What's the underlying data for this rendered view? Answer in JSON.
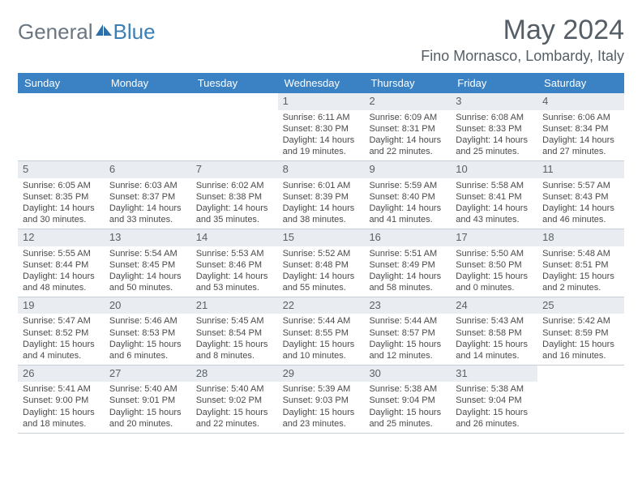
{
  "brand": {
    "first": "General",
    "second": "Blue"
  },
  "title": "May 2024",
  "location": "Fino Mornasco, Lombardy, Italy",
  "colors": {
    "header_bg": "#3b82c4",
    "header_text": "#ffffff",
    "daynum_bg": "#e9edf1",
    "border": "#c7cfd6",
    "brand_gray": "#6b7680",
    "brand_blue": "#3b7fb6",
    "title_color": "#555e66",
    "body_text": "#4a4a4a"
  },
  "dow": [
    "Sunday",
    "Monday",
    "Tuesday",
    "Wednesday",
    "Thursday",
    "Friday",
    "Saturday"
  ],
  "weeks": [
    [
      null,
      null,
      null,
      {
        "n": "1",
        "sunrise": "6:11 AM",
        "sunset": "8:30 PM",
        "daylight": "14 hours and 19 minutes."
      },
      {
        "n": "2",
        "sunrise": "6:09 AM",
        "sunset": "8:31 PM",
        "daylight": "14 hours and 22 minutes."
      },
      {
        "n": "3",
        "sunrise": "6:08 AM",
        "sunset": "8:33 PM",
        "daylight": "14 hours and 25 minutes."
      },
      {
        "n": "4",
        "sunrise": "6:06 AM",
        "sunset": "8:34 PM",
        "daylight": "14 hours and 27 minutes."
      }
    ],
    [
      {
        "n": "5",
        "sunrise": "6:05 AM",
        "sunset": "8:35 PM",
        "daylight": "14 hours and 30 minutes."
      },
      {
        "n": "6",
        "sunrise": "6:03 AM",
        "sunset": "8:37 PM",
        "daylight": "14 hours and 33 minutes."
      },
      {
        "n": "7",
        "sunrise": "6:02 AM",
        "sunset": "8:38 PM",
        "daylight": "14 hours and 35 minutes."
      },
      {
        "n": "8",
        "sunrise": "6:01 AM",
        "sunset": "8:39 PM",
        "daylight": "14 hours and 38 minutes."
      },
      {
        "n": "9",
        "sunrise": "5:59 AM",
        "sunset": "8:40 PM",
        "daylight": "14 hours and 41 minutes."
      },
      {
        "n": "10",
        "sunrise": "5:58 AM",
        "sunset": "8:41 PM",
        "daylight": "14 hours and 43 minutes."
      },
      {
        "n": "11",
        "sunrise": "5:57 AM",
        "sunset": "8:43 PM",
        "daylight": "14 hours and 46 minutes."
      }
    ],
    [
      {
        "n": "12",
        "sunrise": "5:55 AM",
        "sunset": "8:44 PM",
        "daylight": "14 hours and 48 minutes."
      },
      {
        "n": "13",
        "sunrise": "5:54 AM",
        "sunset": "8:45 PM",
        "daylight": "14 hours and 50 minutes."
      },
      {
        "n": "14",
        "sunrise": "5:53 AM",
        "sunset": "8:46 PM",
        "daylight": "14 hours and 53 minutes."
      },
      {
        "n": "15",
        "sunrise": "5:52 AM",
        "sunset": "8:48 PM",
        "daylight": "14 hours and 55 minutes."
      },
      {
        "n": "16",
        "sunrise": "5:51 AM",
        "sunset": "8:49 PM",
        "daylight": "14 hours and 58 minutes."
      },
      {
        "n": "17",
        "sunrise": "5:50 AM",
        "sunset": "8:50 PM",
        "daylight": "15 hours and 0 minutes."
      },
      {
        "n": "18",
        "sunrise": "5:48 AM",
        "sunset": "8:51 PM",
        "daylight": "15 hours and 2 minutes."
      }
    ],
    [
      {
        "n": "19",
        "sunrise": "5:47 AM",
        "sunset": "8:52 PM",
        "daylight": "15 hours and 4 minutes."
      },
      {
        "n": "20",
        "sunrise": "5:46 AM",
        "sunset": "8:53 PM",
        "daylight": "15 hours and 6 minutes."
      },
      {
        "n": "21",
        "sunrise": "5:45 AM",
        "sunset": "8:54 PM",
        "daylight": "15 hours and 8 minutes."
      },
      {
        "n": "22",
        "sunrise": "5:44 AM",
        "sunset": "8:55 PM",
        "daylight": "15 hours and 10 minutes."
      },
      {
        "n": "23",
        "sunrise": "5:44 AM",
        "sunset": "8:57 PM",
        "daylight": "15 hours and 12 minutes."
      },
      {
        "n": "24",
        "sunrise": "5:43 AM",
        "sunset": "8:58 PM",
        "daylight": "15 hours and 14 minutes."
      },
      {
        "n": "25",
        "sunrise": "5:42 AM",
        "sunset": "8:59 PM",
        "daylight": "15 hours and 16 minutes."
      }
    ],
    [
      {
        "n": "26",
        "sunrise": "5:41 AM",
        "sunset": "9:00 PM",
        "daylight": "15 hours and 18 minutes."
      },
      {
        "n": "27",
        "sunrise": "5:40 AM",
        "sunset": "9:01 PM",
        "daylight": "15 hours and 20 minutes."
      },
      {
        "n": "28",
        "sunrise": "5:40 AM",
        "sunset": "9:02 PM",
        "daylight": "15 hours and 22 minutes."
      },
      {
        "n": "29",
        "sunrise": "5:39 AM",
        "sunset": "9:03 PM",
        "daylight": "15 hours and 23 minutes."
      },
      {
        "n": "30",
        "sunrise": "5:38 AM",
        "sunset": "9:04 PM",
        "daylight": "15 hours and 25 minutes."
      },
      {
        "n": "31",
        "sunrise": "5:38 AM",
        "sunset": "9:04 PM",
        "daylight": "15 hours and 26 minutes."
      },
      null
    ]
  ],
  "labels": {
    "sunrise": "Sunrise:",
    "sunset": "Sunset:",
    "daylight": "Daylight:"
  }
}
